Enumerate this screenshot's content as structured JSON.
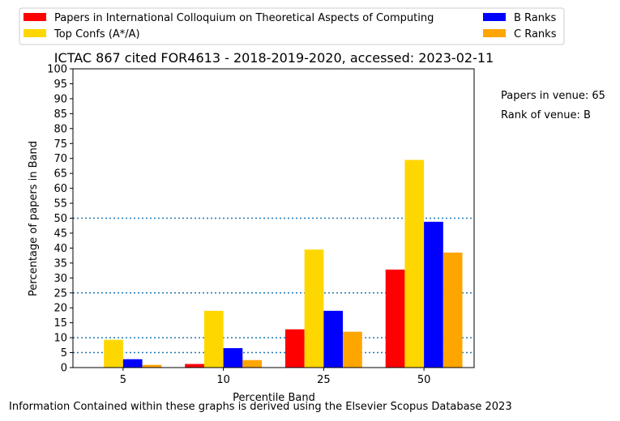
{
  "chart_data": {
    "type": "bar",
    "title": "ICTAC 867 cited FOR4613 - 2018-2019-2020, accessed: 2023-02-11",
    "xlabel": "Percentile Band",
    "ylabel": "Percentage of papers in Band",
    "categories": [
      "5",
      "10",
      "25",
      "50"
    ],
    "ylim": [
      0,
      100
    ],
    "yticks": [
      0,
      5,
      10,
      15,
      20,
      25,
      30,
      35,
      40,
      45,
      50,
      55,
      60,
      65,
      70,
      75,
      80,
      85,
      90,
      95,
      100
    ],
    "reference_lines": [
      5,
      10,
      25,
      50
    ],
    "legend_position": "top",
    "series": [
      {
        "name": "Papers in International Colloquium on Theoretical Aspects of Computing",
        "color": "#ff0000",
        "values": [
          0,
          1.2,
          12.8,
          32.8
        ]
      },
      {
        "name": "Top Confs (A*/A)",
        "color": "#ffd700",
        "values": [
          9.3,
          19.0,
          39.5,
          69.5
        ]
      },
      {
        "name": "B Ranks",
        "color": "#0000ff",
        "values": [
          2.8,
          6.5,
          19.0,
          48.8
        ]
      },
      {
        "name": "C Ranks",
        "color": "#ffa500",
        "values": [
          0.9,
          2.5,
          12.0,
          38.5
        ]
      }
    ]
  },
  "annotations": {
    "papers_in_venue": "Papers in venue: 65",
    "rank_of_venue": "Rank of venue: B"
  },
  "footer": "Information Contained within these graphs is derived using the Elsevier Scopus Database 2023"
}
